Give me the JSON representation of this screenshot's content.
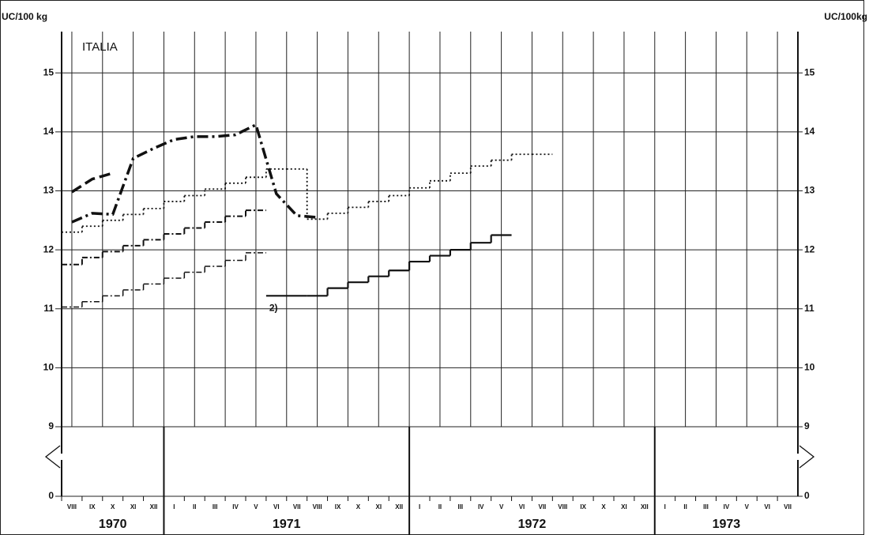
{
  "chart_data": {
    "type": "line",
    "title": "ITALIA",
    "y_label_left": "UC/100 kg",
    "y_label_right": "UC/100kg",
    "annotation": "2)",
    "categories": [
      "VIII",
      "IX",
      "X",
      "XI",
      "XII",
      "I",
      "II",
      "III",
      "IV",
      "V",
      "VI",
      "VII",
      "VIII",
      "IX",
      "X",
      "XI",
      "XII",
      "I",
      "II",
      "III",
      "IV",
      "V",
      "VI",
      "VII",
      "VIII",
      "IX",
      "X",
      "XI",
      "XII",
      "I",
      "II",
      "III",
      "IV",
      "V",
      "VI",
      "VII"
    ],
    "years": [
      "1970",
      "1971",
      "1972",
      "1973"
    ],
    "ylim": [
      9,
      15.7
    ],
    "yticks": [
      0,
      9,
      10,
      11,
      12,
      13,
      14,
      15
    ],
    "axis_break": true,
    "grid": true,
    "series": [
      {
        "color": "#111",
        "step": true,
        "line": "dashdot",
        "width": 1.5,
        "values": [
          11.03,
          11.12,
          11.22,
          11.32,
          11.42,
          11.52,
          11.62,
          11.72,
          11.82,
          11.95,
          null,
          null,
          null,
          null,
          null,
          null,
          null,
          null,
          null,
          null,
          null,
          null,
          null,
          null,
          null,
          null,
          null,
          null,
          null,
          null,
          null,
          null,
          null,
          null,
          null,
          null
        ]
      },
      {
        "color": "#111",
        "step": true,
        "line": "solid",
        "width": 2.2,
        "values": [
          null,
          null,
          null,
          null,
          null,
          null,
          null,
          null,
          null,
          null,
          11.22,
          11.22,
          11.22,
          11.35,
          11.45,
          11.55,
          11.65,
          11.8,
          11.9,
          12.0,
          12.12,
          12.25,
          null,
          null,
          null,
          null,
          null,
          null,
          null,
          null,
          null,
          null,
          null,
          null,
          null,
          null
        ]
      },
      {
        "color": "#111",
        "step": true,
        "line": "dashdot",
        "width": 2,
        "values": [
          11.75,
          11.87,
          11.97,
          12.07,
          12.17,
          12.27,
          12.37,
          12.47,
          12.57,
          12.67,
          null,
          null,
          null,
          null,
          null,
          null,
          null,
          null,
          null,
          null,
          null,
          null,
          null,
          null,
          null,
          null,
          null,
          null,
          null,
          null,
          null,
          null,
          null,
          null,
          null,
          null
        ]
      },
      {
        "color": "#111",
        "step": true,
        "line": "dotted",
        "width": 1.8,
        "values": [
          12.3,
          12.4,
          12.5,
          12.6,
          12.7,
          12.82,
          12.92,
          13.03,
          13.13,
          13.23,
          13.37,
          13.37,
          12.52,
          12.62,
          12.72,
          12.82,
          12.92,
          13.05,
          13.17,
          13.3,
          13.42,
          13.52,
          13.62,
          13.62,
          null,
          null,
          null,
          null,
          null,
          null,
          null,
          null,
          null,
          null,
          null,
          null
        ]
      },
      {
        "color": "#111",
        "step": false,
        "line": "dashdot-thick",
        "width": 3.5,
        "values": [
          12.47,
          12.62,
          12.6,
          13.55,
          13.72,
          13.87,
          13.92,
          13.92,
          13.95,
          14.12,
          12.95,
          12.58,
          12.55,
          null,
          null,
          null,
          null,
          null,
          null,
          null,
          null,
          null,
          null,
          null,
          null,
          null,
          null,
          null,
          null,
          null,
          null,
          null,
          null,
          null,
          null,
          null
        ]
      },
      {
        "color": "#111",
        "step": false,
        "line": "dashed-thick",
        "width": 3.5,
        "values": [
          12.98,
          13.2,
          13.3,
          null,
          null,
          null,
          null,
          null,
          null,
          null,
          null,
          null,
          null,
          null,
          null,
          null,
          null,
          null,
          null,
          null,
          null,
          null,
          null,
          null,
          null,
          null,
          null,
          null,
          null,
          null,
          null,
          null,
          null,
          null,
          null,
          null
        ]
      }
    ]
  }
}
